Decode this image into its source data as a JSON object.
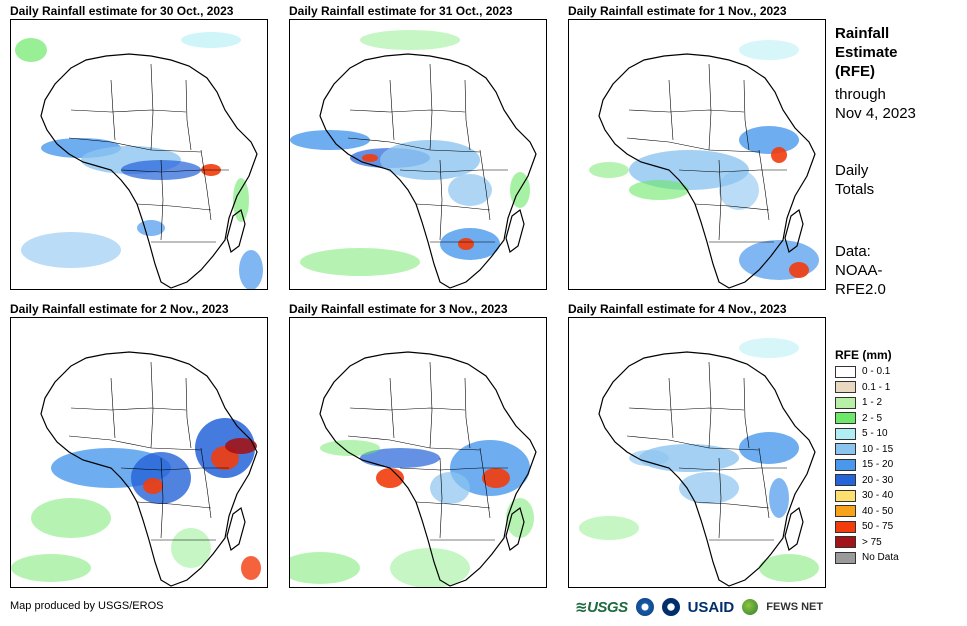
{
  "panels": [
    {
      "title": "Daily Rainfall estimate for 30 Oct., 2023"
    },
    {
      "title": "Daily Rainfall estimate for 31 Oct., 2023"
    },
    {
      "title": "Daily Rainfall estimate for 1 Nov., 2023"
    },
    {
      "title": "Daily Rainfall estimate for 2 Nov., 2023"
    },
    {
      "title": "Daily Rainfall estimate for 3 Nov., 2023"
    },
    {
      "title": "Daily Rainfall estimate for 4 Nov., 2023"
    }
  ],
  "side": {
    "title_line1": "Rainfall",
    "title_line2": "Estimate",
    "title_line3": "(RFE)",
    "through_line1": "through",
    "through_line2": "Nov 4, 2023",
    "totals_line1": "Daily",
    "totals_line2": "Totals",
    "data_line1": "Data:",
    "data_line2": "NOAA-",
    "data_line3": "RFE2.0"
  },
  "legend": {
    "title": "RFE (mm)",
    "items": [
      {
        "label": "0 - 0.1",
        "color": "#ffffff"
      },
      {
        "label": "0.1 - 1",
        "color": "#ead9c1"
      },
      {
        "label": "1 - 2",
        "color": "#b8f0a8"
      },
      {
        "label": "2 - 5",
        "color": "#6de868"
      },
      {
        "label": "5 - 10",
        "color": "#b0eef4"
      },
      {
        "label": "10 - 15",
        "color": "#8cc4f0"
      },
      {
        "label": "15 - 20",
        "color": "#4a98ec"
      },
      {
        "label": "20 - 30",
        "color": "#2463d8"
      },
      {
        "label": "30 - 40",
        "color": "#fde070"
      },
      {
        "label": "40 - 50",
        "color": "#f7a21b"
      },
      {
        "label": "50 - 75",
        "color": "#f23c0c"
      },
      {
        "label": "> 75",
        "color": "#a21418"
      },
      {
        "label": "No Data",
        "color": "#9a9a9a"
      }
    ]
  },
  "credit": "Map produced by USGS/EROS",
  "logos": {
    "usgs": "USGS",
    "usaid": "USAID",
    "fews": "FEWS NET"
  }
}
